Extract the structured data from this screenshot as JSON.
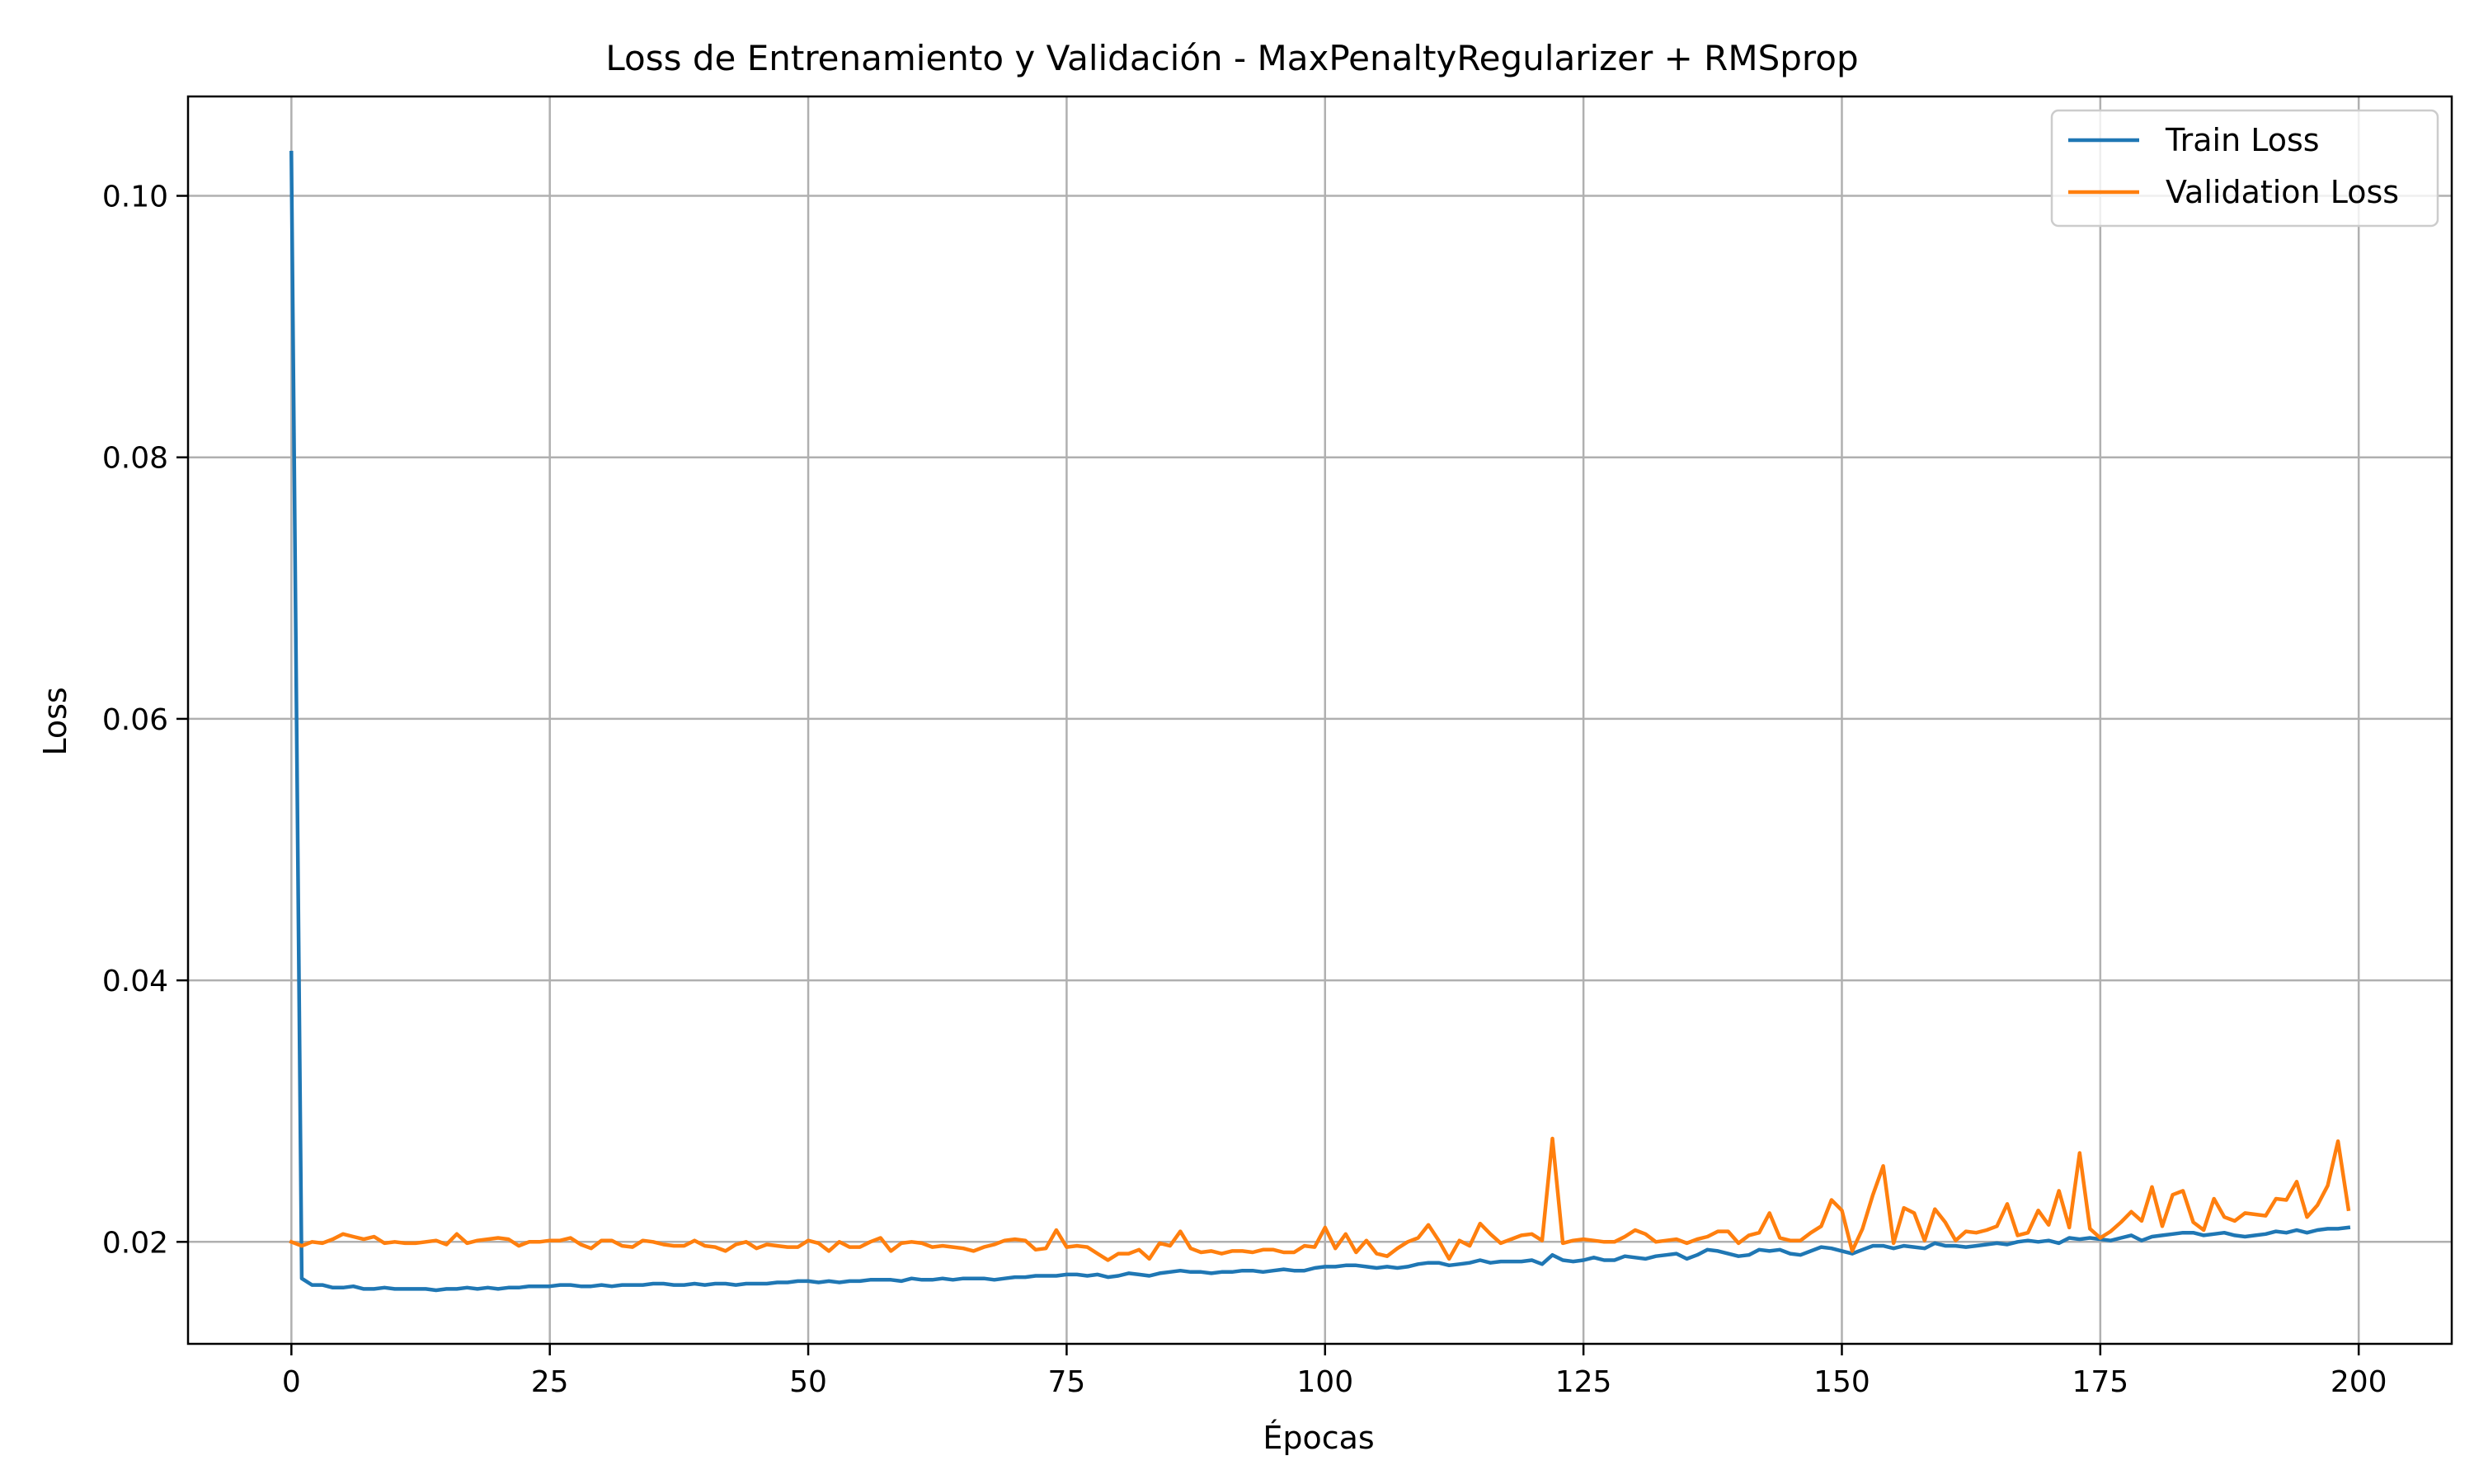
{
  "chart_data": {
    "type": "line",
    "title": "Loss de Entrenamiento y Validación - MaxPenaltyRegularizer + RMSprop",
    "xlabel": "Épocas",
    "ylabel": "Loss",
    "xlim": [
      -10,
      209
    ],
    "ylim": [
      0.0122,
      0.1076
    ],
    "xticks": [
      0,
      25,
      50,
      75,
      100,
      125,
      150,
      175,
      200
    ],
    "yticks": [
      0.02,
      0.04,
      0.06,
      0.08,
      0.1
    ],
    "xtick_labels": [
      "0",
      "25",
      "50",
      "75",
      "100",
      "125",
      "150",
      "175",
      "200"
    ],
    "ytick_labels": [
      "0.02",
      "0.04",
      "0.06",
      "0.08",
      "0.10"
    ],
    "grid": true,
    "legend_position": "top-right",
    "series": [
      {
        "name": "Train Loss",
        "color": "#1f77b4",
        "x": [
          0,
          1,
          2,
          3,
          4,
          5,
          6,
          7,
          8,
          9,
          10,
          11,
          12,
          13,
          14,
          15,
          16,
          17,
          18,
          19,
          20,
          21,
          22,
          23,
          24,
          25,
          26,
          27,
          28,
          29,
          30,
          31,
          32,
          33,
          34,
          35,
          36,
          37,
          38,
          39,
          40,
          41,
          42,
          43,
          44,
          45,
          46,
          47,
          48,
          49,
          50,
          51,
          52,
          53,
          54,
          55,
          56,
          57,
          58,
          59,
          60,
          61,
          62,
          63,
          64,
          65,
          66,
          67,
          68,
          69,
          70,
          71,
          72,
          73,
          74,
          75,
          76,
          77,
          78,
          79,
          80,
          81,
          82,
          83,
          84,
          85,
          86,
          87,
          88,
          89,
          90,
          91,
          92,
          93,
          94,
          95,
          96,
          97,
          98,
          99,
          100,
          101,
          102,
          103,
          104,
          105,
          106,
          107,
          108,
          109,
          110,
          111,
          112,
          113,
          114,
          115,
          116,
          117,
          118,
          119,
          120,
          121,
          122,
          123,
          124,
          125,
          126,
          127,
          128,
          129,
          130,
          131,
          132,
          133,
          134,
          135,
          136,
          137,
          138,
          139,
          140,
          141,
          142,
          143,
          144,
          145,
          146,
          147,
          148,
          149,
          150,
          151,
          152,
          153,
          154,
          155,
          156,
          157,
          158,
          159,
          160,
          161,
          162,
          163,
          164,
          165,
          166,
          167,
          168,
          169,
          170,
          171,
          172,
          173,
          174,
          175,
          176,
          177,
          178,
          179,
          180,
          181,
          182,
          183,
          184,
          185,
          186,
          187,
          188,
          189,
          190,
          191,
          192,
          193,
          194,
          195,
          196,
          197,
          198,
          199
        ],
        "y": [
          0.1033,
          0.0172,
          0.0167,
          0.0167,
          0.0165,
          0.0165,
          0.0166,
          0.0164,
          0.0164,
          0.0165,
          0.0164,
          0.0164,
          0.0164,
          0.0164,
          0.0163,
          0.0164,
          0.0164,
          0.0165,
          0.0164,
          0.0165,
          0.0164,
          0.0165,
          0.0165,
          0.0166,
          0.0166,
          0.0166,
          0.0167,
          0.0167,
          0.0166,
          0.0166,
          0.0167,
          0.0166,
          0.0167,
          0.0167,
          0.0167,
          0.0168,
          0.0168,
          0.0167,
          0.0167,
          0.0168,
          0.0167,
          0.0168,
          0.0168,
          0.0167,
          0.0168,
          0.0168,
          0.0168,
          0.0169,
          0.0169,
          0.017,
          0.017,
          0.0169,
          0.017,
          0.0169,
          0.017,
          0.017,
          0.0171,
          0.0171,
          0.0171,
          0.017,
          0.0172,
          0.0171,
          0.0171,
          0.0172,
          0.0171,
          0.0172,
          0.0172,
          0.0172,
          0.0171,
          0.0172,
          0.0173,
          0.0173,
          0.0174,
          0.0174,
          0.0174,
          0.0175,
          0.0175,
          0.0174,
          0.0175,
          0.0173,
          0.0174,
          0.0176,
          0.0175,
          0.0174,
          0.0176,
          0.0177,
          0.0178,
          0.0177,
          0.0177,
          0.0176,
          0.0177,
          0.0177,
          0.0178,
          0.0178,
          0.0177,
          0.0178,
          0.0179,
          0.0178,
          0.0178,
          0.018,
          0.0181,
          0.0181,
          0.0182,
          0.0182,
          0.0181,
          0.018,
          0.0181,
          0.018,
          0.0181,
          0.0183,
          0.0184,
          0.0184,
          0.0182,
          0.0183,
          0.0184,
          0.0186,
          0.0184,
          0.0185,
          0.0185,
          0.0185,
          0.0186,
          0.0183,
          0.019,
          0.0186,
          0.0185,
          0.0186,
          0.0188,
          0.0186,
          0.0186,
          0.0189,
          0.0188,
          0.0187,
          0.0189,
          0.019,
          0.0191,
          0.0187,
          0.019,
          0.0194,
          0.0193,
          0.0191,
          0.0189,
          0.019,
          0.0194,
          0.0193,
          0.0194,
          0.0191,
          0.019,
          0.0193,
          0.0196,
          0.0195,
          0.0193,
          0.0191,
          0.0194,
          0.0197,
          0.0197,
          0.0195,
          0.0197,
          0.0196,
          0.0195,
          0.0199,
          0.0197,
          0.0197,
          0.0196,
          0.0197,
          0.0198,
          0.0199,
          0.0198,
          0.02,
          0.0201,
          0.02,
          0.0201,
          0.0199,
          0.0203,
          0.0202,
          0.0203,
          0.0202,
          0.0201,
          0.0203,
          0.0205,
          0.0201,
          0.0204,
          0.0205,
          0.0206,
          0.0207,
          0.0207,
          0.0205,
          0.0206,
          0.0207,
          0.0205,
          0.0204,
          0.0205,
          0.0206,
          0.0208,
          0.0207,
          0.0209,
          0.0207,
          0.0209,
          0.021,
          0.021,
          0.0211
        ]
      },
      {
        "name": "Validation Loss",
        "color": "#ff7f0e",
        "x": [
          0,
          1,
          2,
          3,
          4,
          5,
          6,
          7,
          8,
          9,
          10,
          11,
          12,
          13,
          14,
          15,
          16,
          17,
          18,
          19,
          20,
          21,
          22,
          23,
          24,
          25,
          26,
          27,
          28,
          29,
          30,
          31,
          32,
          33,
          34,
          35,
          36,
          37,
          38,
          39,
          40,
          41,
          42,
          43,
          44,
          45,
          46,
          47,
          48,
          49,
          50,
          51,
          52,
          53,
          54,
          55,
          56,
          57,
          58,
          59,
          60,
          61,
          62,
          63,
          64,
          65,
          66,
          67,
          68,
          69,
          70,
          71,
          72,
          73,
          74,
          75,
          76,
          77,
          78,
          79,
          80,
          81,
          82,
          83,
          84,
          85,
          86,
          87,
          88,
          89,
          90,
          91,
          92,
          93,
          94,
          95,
          96,
          97,
          98,
          99,
          100,
          101,
          102,
          103,
          104,
          105,
          106,
          107,
          108,
          109,
          110,
          111,
          112,
          113,
          114,
          115,
          116,
          117,
          118,
          119,
          120,
          121,
          122,
          123,
          124,
          125,
          126,
          127,
          128,
          129,
          130,
          131,
          132,
          133,
          134,
          135,
          136,
          137,
          138,
          139,
          140,
          141,
          142,
          143,
          144,
          145,
          146,
          147,
          148,
          149,
          150,
          151,
          152,
          153,
          154,
          155,
          156,
          157,
          158,
          159,
          160,
          161,
          162,
          163,
          164,
          165,
          166,
          167,
          168,
          169,
          170,
          171,
          172,
          173,
          174,
          175,
          176,
          177,
          178,
          179,
          180,
          181,
          182,
          183,
          184,
          185,
          186,
          187,
          188,
          189,
          190,
          191,
          192,
          193,
          194,
          195,
          196,
          197,
          198,
          199
        ],
        "y": [
          0.02,
          0.0197,
          0.02,
          0.0199,
          0.0202,
          0.0206,
          0.0204,
          0.0202,
          0.0204,
          0.0199,
          0.02,
          0.0199,
          0.0199,
          0.02,
          0.0201,
          0.0198,
          0.0206,
          0.0199,
          0.0201,
          0.0202,
          0.0203,
          0.0202,
          0.0197,
          0.02,
          0.02,
          0.0201,
          0.0201,
          0.0203,
          0.0198,
          0.0195,
          0.0201,
          0.0201,
          0.0197,
          0.0196,
          0.0201,
          0.02,
          0.0198,
          0.0197,
          0.0197,
          0.0201,
          0.0197,
          0.0196,
          0.0193,
          0.0198,
          0.02,
          0.0195,
          0.0198,
          0.0197,
          0.0196,
          0.0196,
          0.0201,
          0.0199,
          0.0193,
          0.02,
          0.0196,
          0.0196,
          0.02,
          0.0203,
          0.0193,
          0.0199,
          0.02,
          0.0199,
          0.0196,
          0.0197,
          0.0196,
          0.0195,
          0.0193,
          0.0196,
          0.0198,
          0.0201,
          0.0202,
          0.0201,
          0.0194,
          0.0195,
          0.0209,
          0.0196,
          0.0197,
          0.0196,
          0.0191,
          0.0186,
          0.0191,
          0.0191,
          0.0194,
          0.0187,
          0.0199,
          0.0197,
          0.0208,
          0.0195,
          0.0192,
          0.0193,
          0.0191,
          0.0193,
          0.0193,
          0.0192,
          0.0194,
          0.0194,
          0.0192,
          0.0192,
          0.0197,
          0.0196,
          0.0211,
          0.0195,
          0.0206,
          0.0192,
          0.0201,
          0.0191,
          0.0189,
          0.0195,
          0.02,
          0.0203,
          0.0213,
          0.0201,
          0.0187,
          0.0201,
          0.0197,
          0.0214,
          0.0206,
          0.0199,
          0.0202,
          0.0205,
          0.0206,
          0.0201,
          0.0279,
          0.0199,
          0.0201,
          0.0202,
          0.0201,
          0.02,
          0.02,
          0.0204,
          0.0209,
          0.0206,
          0.02,
          0.0201,
          0.0202,
          0.0199,
          0.0202,
          0.0204,
          0.0208,
          0.0208,
          0.0199,
          0.0205,
          0.0207,
          0.0222,
          0.0203,
          0.0201,
          0.0201,
          0.0207,
          0.0212,
          0.0232,
          0.0224,
          0.0193,
          0.021,
          0.0236,
          0.0258,
          0.0199,
          0.0226,
          0.0222,
          0.0201,
          0.0225,
          0.0215,
          0.0201,
          0.0208,
          0.0207,
          0.0209,
          0.0212,
          0.0229,
          0.0205,
          0.0207,
          0.0224,
          0.0213,
          0.0239,
          0.0211,
          0.0268,
          0.021,
          0.0203,
          0.0208,
          0.0215,
          0.0223,
          0.0216,
          0.0242,
          0.0212,
          0.0236,
          0.0239,
          0.0215,
          0.0209,
          0.0233,
          0.0219,
          0.0216,
          0.0222,
          0.0221,
          0.022,
          0.0233,
          0.0232,
          0.0246,
          0.0219,
          0.0228,
          0.0243,
          0.0277,
          0.0225
        ]
      }
    ]
  }
}
